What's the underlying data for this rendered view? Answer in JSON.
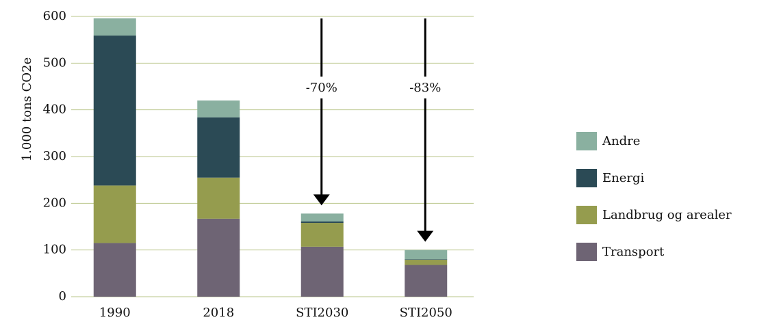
{
  "chart_data": {
    "type": "stacked-bar",
    "y_label": "1.000 tons CO2e",
    "categories": [
      "1990",
      "2018",
      "STI2030",
      "STI2050"
    ],
    "series": [
      {
        "name": "Transport",
        "color": "#6e6474",
        "values": [
          115,
          167,
          107,
          68
        ]
      },
      {
        "name": "Landbrug og arealer",
        "color": "#959c4e",
        "values": [
          123,
          88,
          51,
          11
        ]
      },
      {
        "name": "Energi",
        "color": "#2b4a55",
        "values": [
          321,
          129,
          3,
          1
        ]
      },
      {
        "name": "Andre",
        "color": "#8ab0a0",
        "values": [
          37,
          36,
          17,
          20
        ]
      }
    ],
    "ylim": [
      0,
      600
    ],
    "yticks": [
      0,
      100,
      200,
      300,
      400,
      500,
      600
    ],
    "grid": true,
    "legend": "right",
    "annotations": [
      {
        "label": "-70%",
        "category": "STI2030"
      },
      {
        "label": "-83%",
        "category": "STI2050"
      }
    ]
  }
}
